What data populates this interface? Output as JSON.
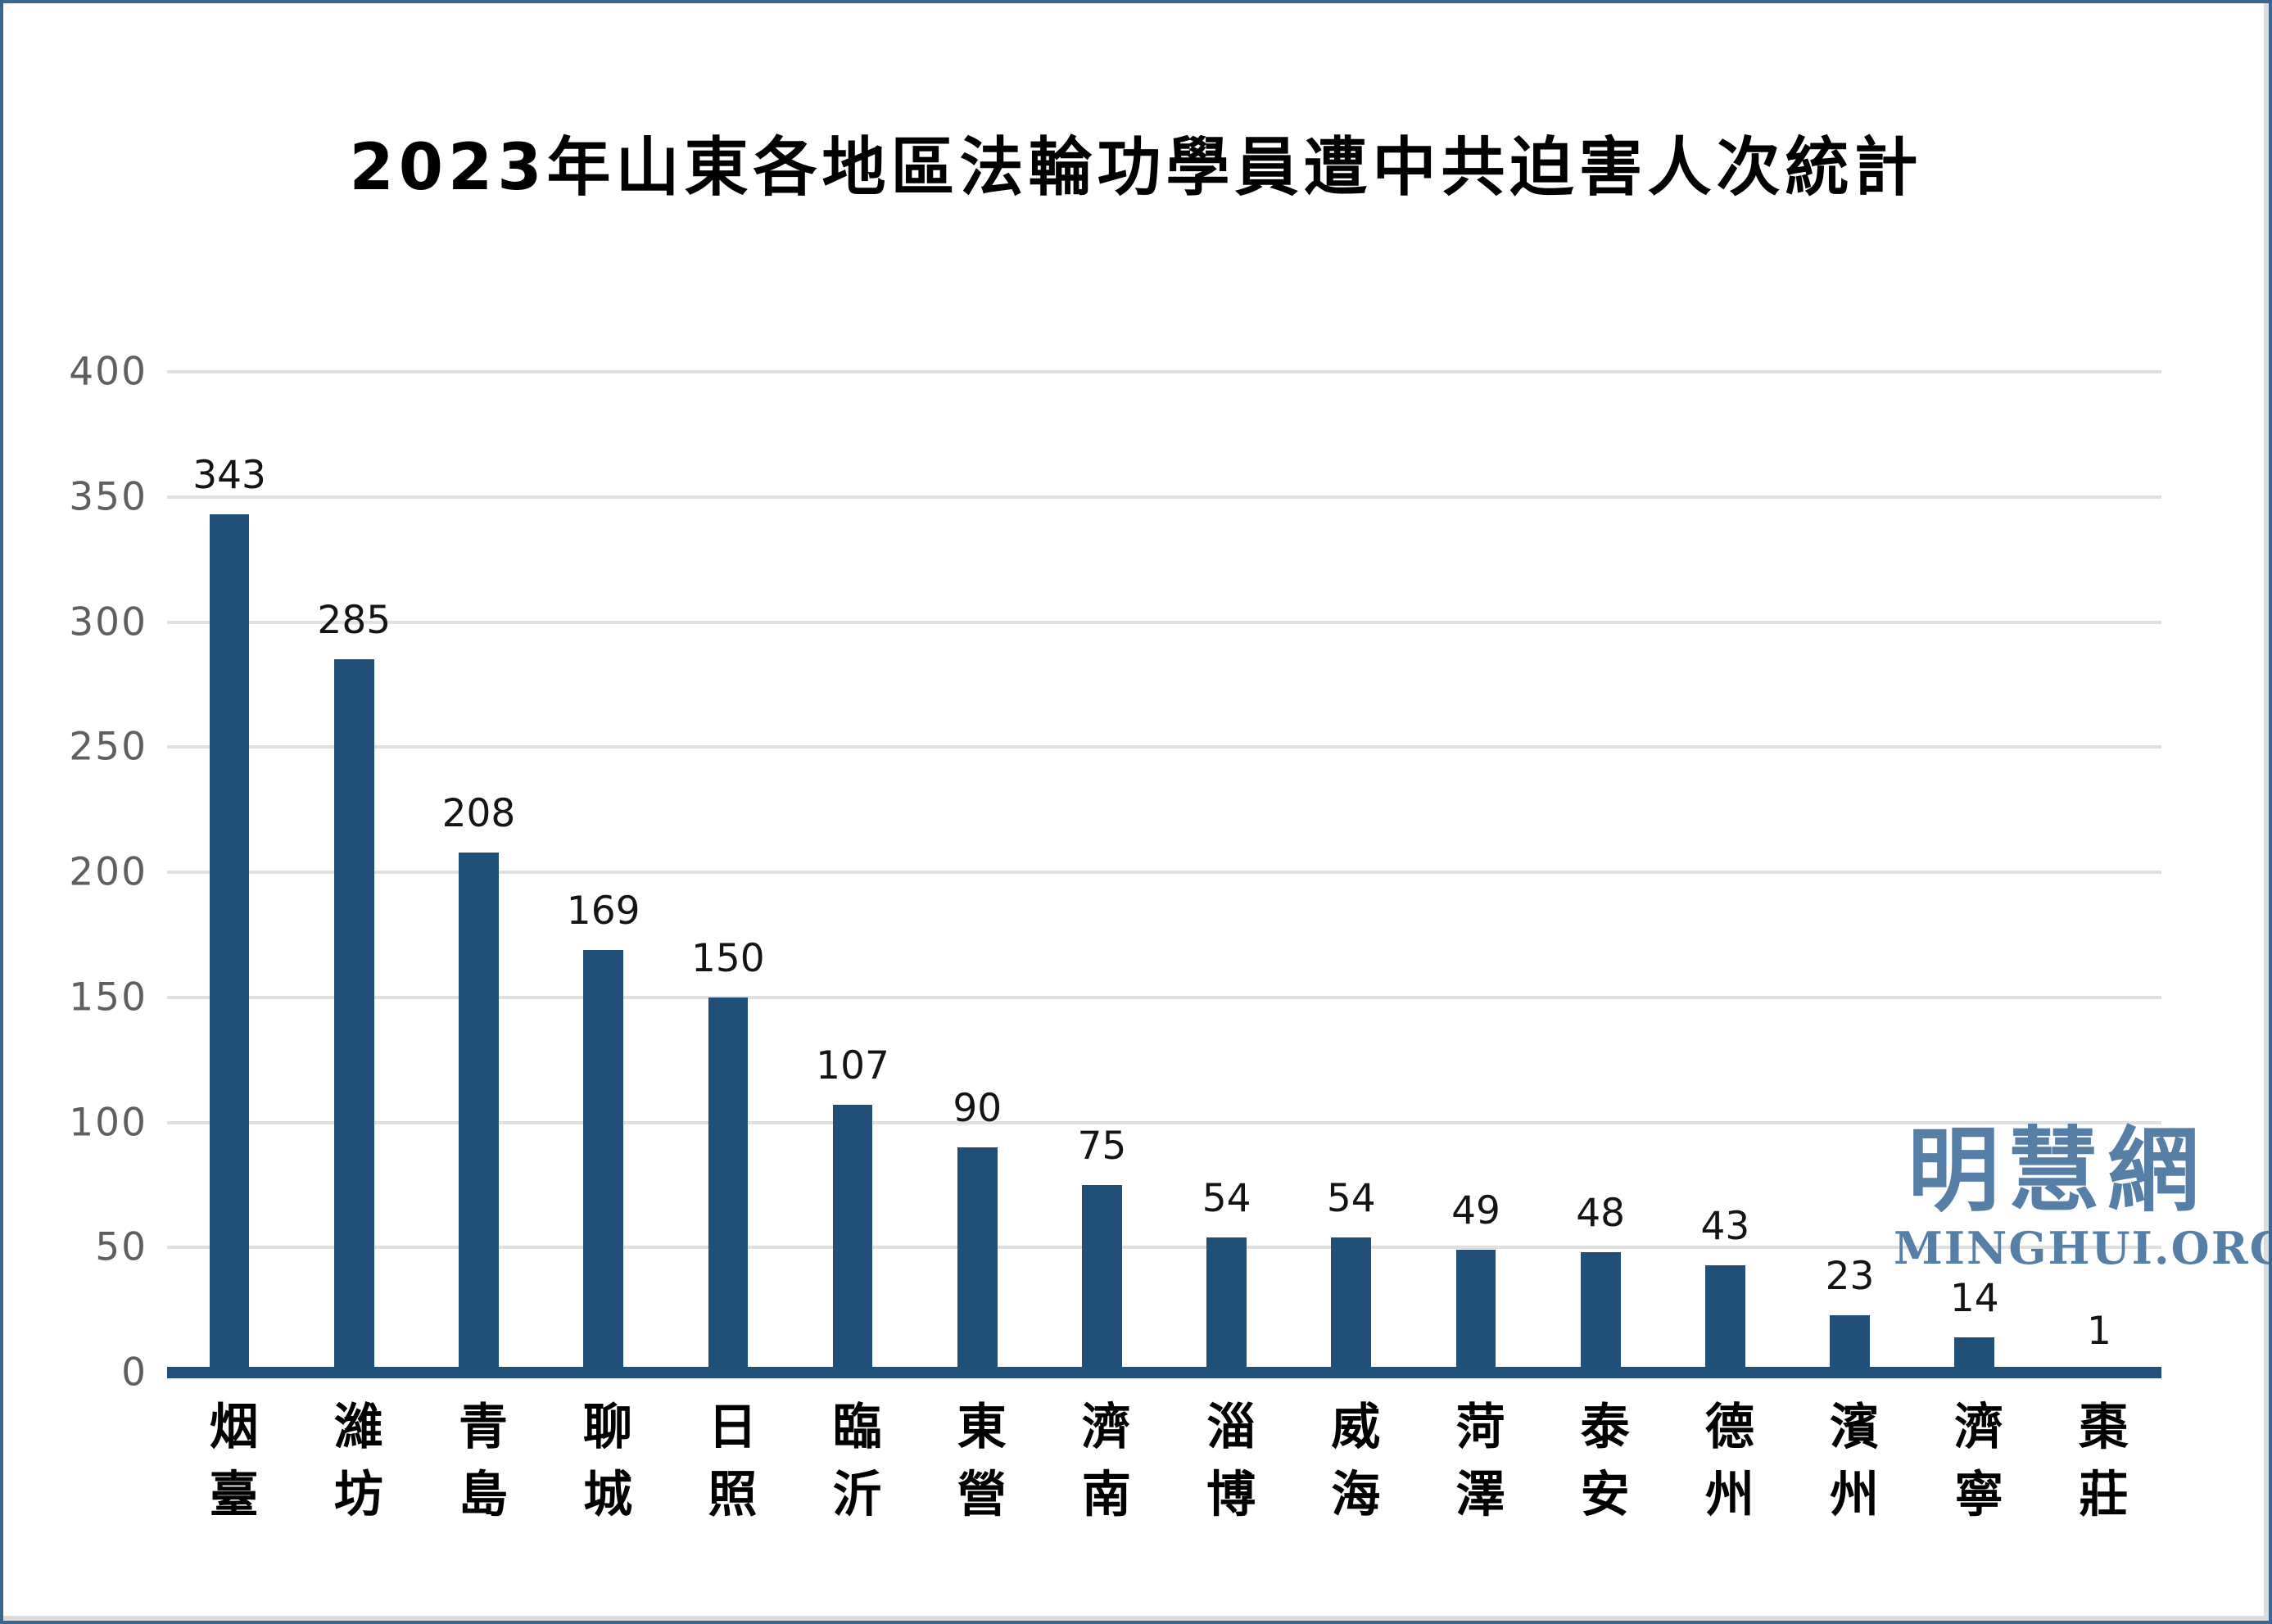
{
  "frame": {
    "background": "#ffffff",
    "border_color": "#39678f"
  },
  "watermark": {
    "cjk": "明慧網",
    "latin": "MINGHUI.ORG",
    "color": "#567fa8"
  },
  "chart_data": {
    "type": "bar",
    "title": "2023年山東各地區法輪功學員遭中共迫害人次統計",
    "categories": [
      "烟臺",
      "濰坊",
      "青島",
      "聊城",
      "日照",
      "臨沂",
      "東營",
      "濟南",
      "淄博",
      "威海",
      "菏澤",
      "泰安",
      "德州",
      "濱州",
      "濟寧",
      "棗莊"
    ],
    "values": [
      343,
      285,
      208,
      169,
      150,
      107,
      90,
      75,
      54,
      54,
      49,
      48,
      43,
      23,
      14,
      1
    ],
    "xlabel": "",
    "ylabel": "",
    "ylim": [
      0,
      400
    ],
    "yticks": [
      0,
      50,
      100,
      150,
      200,
      250,
      300,
      350,
      400
    ],
    "grid": true,
    "legend": "none",
    "bar_color": "#204f78",
    "axis_line_color": "#215178",
    "gridline_color": "#e0e0e0",
    "tick_label_color": "#5f5f5f",
    "value_label_color": "#141414"
  }
}
